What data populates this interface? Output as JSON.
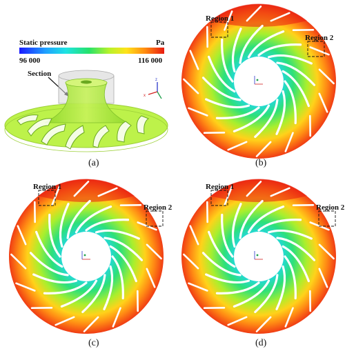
{
  "colorbar": {
    "title": "Static pressure",
    "unit": "Pa",
    "min_label": "96 000",
    "max_label": "116 000"
  },
  "section_label": "Section",
  "axes": {
    "x": "x",
    "y": "y",
    "z": "z"
  },
  "panels": [
    {
      "label": "(a)"
    },
    {
      "label": "(b)",
      "region1": "Region 1",
      "region2": "Region 2"
    },
    {
      "label": "(c)",
      "region1": "Region 1",
      "region2": "Region 2"
    },
    {
      "label": "(d)",
      "region1": "Region 1",
      "region2": "Region 2"
    }
  ],
  "colors": {
    "low": "#1a1aff",
    "mid": "#26e26a",
    "high": "#e81a10"
  }
}
